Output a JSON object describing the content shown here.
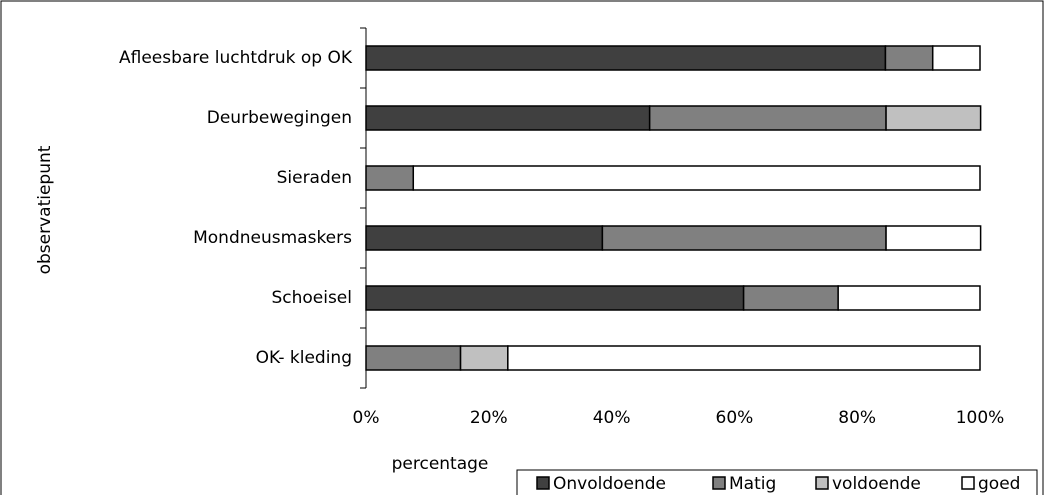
{
  "chart_data": {
    "type": "stacked_bar_horizontal",
    "categories": [
      "Afleesbare luchtdruk op OK",
      "Deurbewegingen",
      "Sieraden",
      "Mondneusmaskers",
      "Schoeisel",
      "OK- kleding"
    ],
    "series": [
      {
        "name": "Onvoldoende",
        "color": "#404040",
        "values": [
          84.6,
          46.2,
          0,
          38.5,
          61.5,
          0
        ]
      },
      {
        "name": "Matig",
        "color": "#808080",
        "values": [
          7.7,
          38.5,
          7.7,
          46.2,
          15.4,
          15.4
        ]
      },
      {
        "name": "voldoende",
        "color": "#c0c0c0",
        "values": [
          0,
          15.4,
          0,
          0,
          0,
          7.7
        ]
      },
      {
        "name": "goed",
        "color": "#ffffff",
        "values": [
          7.7,
          0,
          92.3,
          15.4,
          23.1,
          76.9
        ]
      }
    ],
    "xlim": [
      0,
      100
    ],
    "xticks": [
      {
        "value": 0,
        "label": "0%"
      },
      {
        "value": 20,
        "label": "20%"
      },
      {
        "value": 40,
        "label": "40%"
      },
      {
        "value": 60,
        "label": "60%"
      },
      {
        "value": 80,
        "label": "80%"
      },
      {
        "value": 100,
        "label": "100%"
      }
    ],
    "xlabel": "percentage",
    "ylabel": "observatiepunt",
    "legend": "bottom-right"
  }
}
